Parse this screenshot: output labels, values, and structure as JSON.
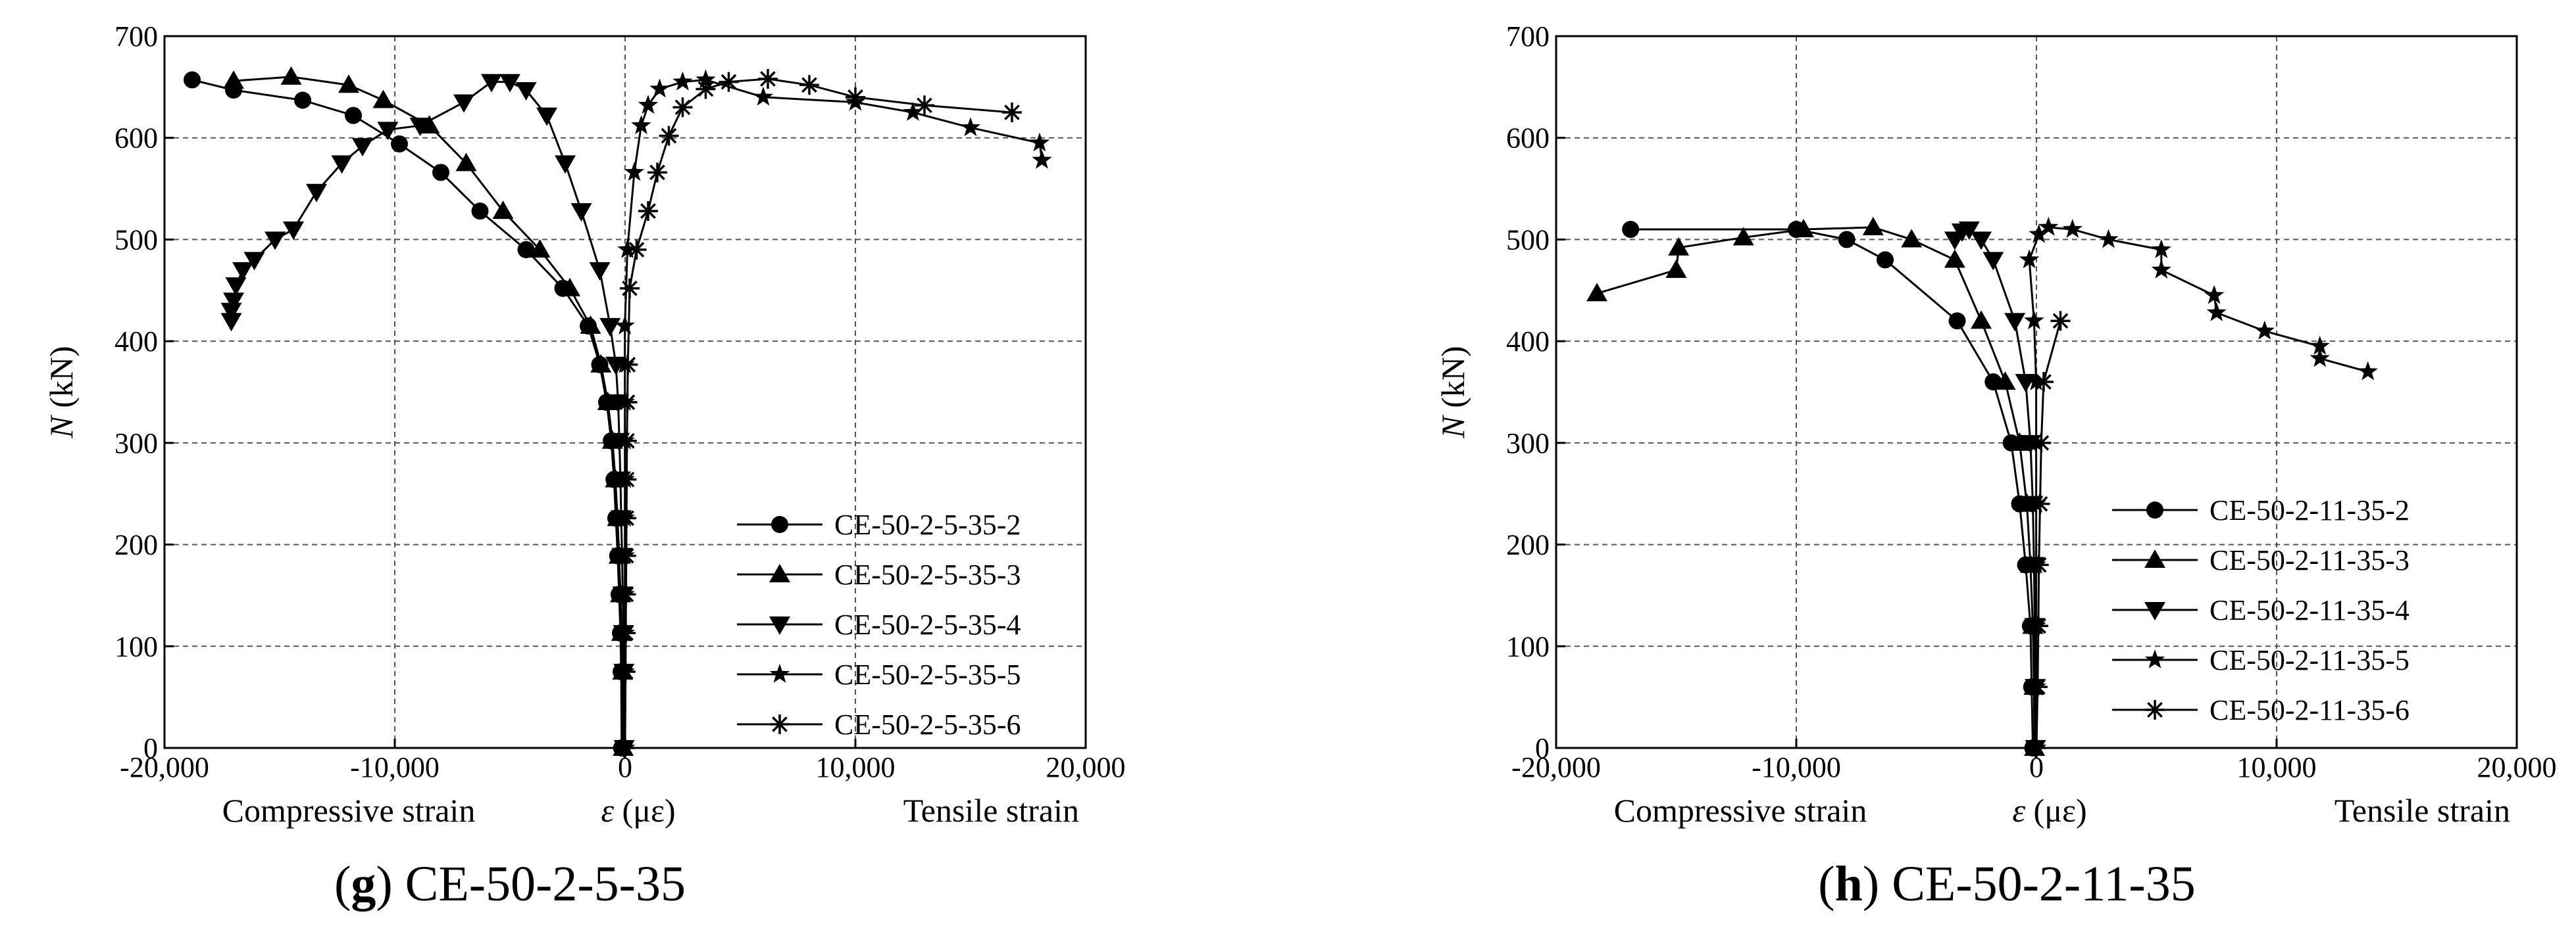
{
  "chart_data": [
    {
      "type": "line",
      "caption_letter": "g",
      "caption_name": "CE-50-2-5-35",
      "xlabel_symbol": "ε",
      "xlabel_unit": "(με)",
      "xlabel_left": "Compressive strain",
      "xlabel_right": "Tensile strain",
      "ylabel_symbol": "N",
      "ylabel_unit": "(kN)",
      "xlim": [
        -20000,
        20000
      ],
      "ylim": [
        0,
        700
      ],
      "x_ticks": [
        -20000,
        -10000,
        0,
        10000,
        20000
      ],
      "x_tick_labels": [
        "-20,000",
        "-10,000",
        "0",
        "10,000",
        "20,000"
      ],
      "y_ticks": [
        0,
        100,
        200,
        300,
        400,
        500,
        600,
        700
      ],
      "y_tick_labels": [
        "0",
        "100",
        "200",
        "300",
        "400",
        "500",
        "600",
        "700"
      ],
      "grid": true,
      "legend_position": "bottom-right",
      "series": [
        {
          "name": "CE-50-2-5-35-2",
          "marker": "circle",
          "points": [
            [
              -150,
              0
            ],
            [
              -170,
              75
            ],
            [
              -200,
              113
            ],
            [
              -260,
              151
            ],
            [
              -320,
              189
            ],
            [
              -400,
              226
            ],
            [
              -480,
              264
            ],
            [
              -600,
              302
            ],
            [
              -800,
              340
            ],
            [
              -1100,
              377
            ],
            [
              -1600,
              415
            ],
            [
              -2700,
              452
            ],
            [
              -4300,
              490
            ],
            [
              -6300,
              528
            ],
            [
              -8000,
              566
            ],
            [
              -9800,
              594
            ],
            [
              -11800,
              622
            ],
            [
              -14000,
              637
            ],
            [
              -17000,
              647
            ],
            [
              -18800,
              657
            ]
          ]
        },
        {
          "name": "CE-50-2-5-35-3",
          "marker": "triangle-up",
          "points": [
            [
              -80,
              0
            ],
            [
              -100,
              75
            ],
            [
              -150,
              113
            ],
            [
              -200,
              151
            ],
            [
              -260,
              189
            ],
            [
              -330,
              226
            ],
            [
              -420,
              264
            ],
            [
              -550,
              302
            ],
            [
              -750,
              340
            ],
            [
              -1050,
              377
            ],
            [
              -1500,
              415
            ],
            [
              -2400,
              452
            ],
            [
              -3700,
              490
            ],
            [
              -5300,
              528
            ],
            [
              -6900,
              575
            ],
            [
              -8500,
              612
            ],
            [
              -10500,
              637
            ],
            [
              -12000,
              652
            ],
            [
              -14500,
              660
            ],
            [
              -17000,
              656
            ]
          ]
        },
        {
          "name": "CE-50-2-5-35-4",
          "marker": "triangle-down",
          "points": [
            [
              -40,
              0
            ],
            [
              -50,
              75
            ],
            [
              -70,
              113
            ],
            [
              -100,
              151
            ],
            [
              -130,
              189
            ],
            [
              -170,
              226
            ],
            [
              -200,
              264
            ],
            [
              -250,
              302
            ],
            [
              -300,
              340
            ],
            [
              -400,
              377
            ],
            [
              -650,
              415
            ],
            [
              -1100,
              470
            ],
            [
              -1900,
              528
            ],
            [
              -2600,
              575
            ],
            [
              -3400,
              622
            ],
            [
              -4300,
              647
            ],
            [
              -5000,
              655
            ],
            [
              -5800,
              655
            ],
            [
              -7000,
              635
            ],
            [
              -8900,
              612
            ],
            [
              -10300,
              608
            ],
            [
              -11400,
              592
            ],
            [
              -12300,
              575
            ],
            [
              -13400,
              547
            ],
            [
              -14400,
              510
            ],
            [
              -15200,
              500
            ],
            [
              -16100,
              480
            ],
            [
              -16600,
              470
            ],
            [
              -16900,
              455
            ],
            [
              -17000,
              440
            ],
            [
              -17100,
              430
            ],
            [
              -17100,
              420
            ]
          ]
        },
        {
          "name": "CE-50-2-5-35-5",
          "marker": "star",
          "points": [
            [
              0,
              0
            ],
            [
              -10,
              75
            ],
            [
              -10,
              113
            ],
            [
              -10,
              151
            ],
            [
              -10,
              189
            ],
            [
              -10,
              226
            ],
            [
              -10,
              264
            ],
            [
              -10,
              302
            ],
            [
              -10,
              340
            ],
            [
              -10,
              377
            ],
            [
              -10,
              415
            ],
            [
              100,
              490
            ],
            [
              400,
              566
            ],
            [
              700,
              612
            ],
            [
              1000,
              632
            ],
            [
              1500,
              648
            ],
            [
              2500,
              655
            ],
            [
              3500,
              657
            ],
            [
              6000,
              640
            ],
            [
              10000,
              635
            ],
            [
              12500,
              625
            ],
            [
              15000,
              610
            ],
            [
              18000,
              595
            ],
            [
              18100,
              578
            ]
          ]
        },
        {
          "name": "CE-50-2-5-35-6",
          "marker": "asterisk",
          "points": [
            [
              0,
              0
            ],
            [
              20,
              75
            ],
            [
              30,
              113
            ],
            [
              40,
              151
            ],
            [
              50,
              189
            ],
            [
              60,
              226
            ],
            [
              70,
              264
            ],
            [
              80,
              302
            ],
            [
              100,
              340
            ],
            [
              120,
              377
            ],
            [
              200,
              452
            ],
            [
              500,
              490
            ],
            [
              1000,
              528
            ],
            [
              1400,
              566
            ],
            [
              1900,
              602
            ],
            [
              2500,
              630
            ],
            [
              3500,
              648
            ],
            [
              4500,
              655
            ],
            [
              6200,
              658
            ],
            [
              8000,
              652
            ],
            [
              10000,
              640
            ],
            [
              13000,
              632
            ],
            [
              16800,
              625
            ]
          ]
        }
      ]
    },
    {
      "type": "line",
      "caption_letter": "h",
      "caption_name": "CE-50-2-11-35",
      "xlabel_symbol": "ε",
      "xlabel_unit": "(με)",
      "xlabel_left": "Compressive strain",
      "xlabel_right": "Tensile strain",
      "ylabel_symbol": "N",
      "ylabel_unit": "(kN)",
      "xlim": [
        -20000,
        20000
      ],
      "ylim": [
        0,
        700
      ],
      "x_ticks": [
        -20000,
        -10000,
        0,
        10000,
        20000
      ],
      "x_tick_labels": [
        "-20,000",
        "-10,000",
        "0",
        "10,000",
        "20,000"
      ],
      "y_ticks": [
        0,
        100,
        200,
        300,
        400,
        500,
        600,
        700
      ],
      "y_tick_labels": [
        "0",
        "100",
        "200",
        "300",
        "400",
        "500",
        "600",
        "700"
      ],
      "grid": true,
      "legend_position": "bottom-right",
      "series": [
        {
          "name": "CE-50-2-11-35-2",
          "marker": "circle",
          "points": [
            [
              -150,
              0
            ],
            [
              -200,
              60
            ],
            [
              -250,
              120
            ],
            [
              -450,
              180
            ],
            [
              -700,
              240
            ],
            [
              -1050,
              300
            ],
            [
              -1800,
              360
            ],
            [
              -3300,
              420
            ],
            [
              -6300,
              480
            ],
            [
              -7900,
              500
            ],
            [
              -10000,
              510
            ],
            [
              -16900,
              510
            ]
          ]
        },
        {
          "name": "CE-50-2-11-35-3",
          "marker": "triangle-up",
          "points": [
            [
              -80,
              0
            ],
            [
              -100,
              60
            ],
            [
              -150,
              120
            ],
            [
              -250,
              180
            ],
            [
              -400,
              240
            ],
            [
              -700,
              300
            ],
            [
              -1300,
              360
            ],
            [
              -2300,
              420
            ],
            [
              -3400,
              480
            ],
            [
              -5200,
              500
            ],
            [
              -6800,
              512
            ],
            [
              -9700,
              510
            ],
            [
              -12200,
              502
            ],
            [
              -14900,
              492
            ],
            [
              -15000,
              470
            ],
            [
              -18300,
              447
            ]
          ]
        },
        {
          "name": "CE-50-2-11-35-4",
          "marker": "triangle-down",
          "points": [
            [
              -40,
              0
            ],
            [
              -50,
              60
            ],
            [
              -70,
              120
            ],
            [
              -100,
              180
            ],
            [
              -150,
              240
            ],
            [
              -250,
              300
            ],
            [
              -450,
              360
            ],
            [
              -900,
              420
            ],
            [
              -1800,
              480
            ],
            [
              -2300,
              500
            ],
            [
              -2800,
              510
            ],
            [
              -3100,
              508
            ],
            [
              -3400,
              500
            ]
          ]
        },
        {
          "name": "CE-50-2-11-35-5",
          "marker": "star",
          "points": [
            [
              0,
              0
            ],
            [
              -10,
              60
            ],
            [
              -10,
              120
            ],
            [
              -10,
              180
            ],
            [
              -10,
              240
            ],
            [
              -10,
              300
            ],
            [
              -10,
              360
            ],
            [
              -100,
              420
            ],
            [
              -300,
              480
            ],
            [
              100,
              505
            ],
            [
              500,
              512
            ],
            [
              1500,
              510
            ],
            [
              3000,
              500
            ],
            [
              5200,
              490
            ],
            [
              5200,
              470
            ],
            [
              7400,
              445
            ],
            [
              7500,
              428
            ],
            [
              9500,
              410
            ],
            [
              11800,
              395
            ],
            [
              11800,
              383
            ],
            [
              13800,
              370
            ]
          ]
        },
        {
          "name": "CE-50-2-11-35-6",
          "marker": "asterisk",
          "points": [
            [
              0,
              0
            ],
            [
              50,
              60
            ],
            [
              80,
              120
            ],
            [
              100,
              180
            ],
            [
              150,
              240
            ],
            [
              200,
              300
            ],
            [
              300,
              360
            ],
            [
              1000,
              420
            ]
          ]
        }
      ]
    }
  ]
}
